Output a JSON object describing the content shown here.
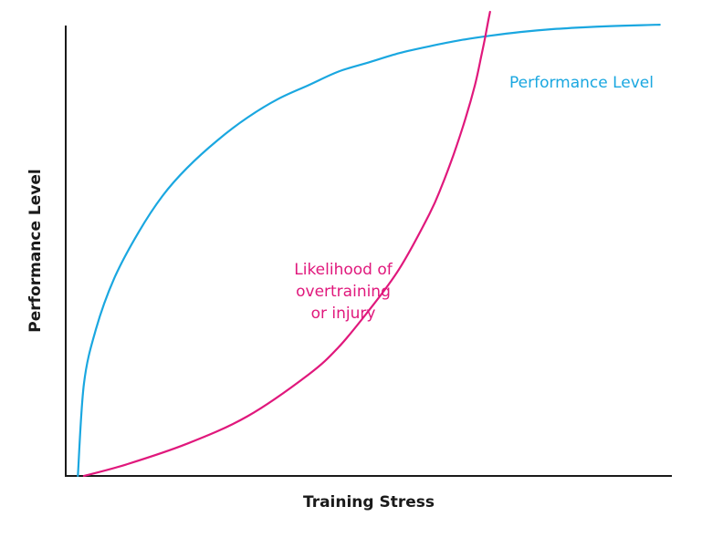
{
  "chart_data": {
    "type": "line",
    "title": "",
    "xlabel": "Training Stress",
    "ylabel": "Performance Level",
    "xlim": [
      0,
      100
    ],
    "ylim": [
      0,
      100
    ],
    "grid": false,
    "ticks": false,
    "series": [
      {
        "name": "Performance Level",
        "label_lines": [
          "Performance Level"
        ],
        "color": "#1aa7e0",
        "x": [
          2,
          3,
          5,
          8,
          12,
          16,
          20,
          25,
          30,
          35,
          40,
          45,
          50,
          55,
          60,
          65,
          70,
          75,
          80,
          85,
          90,
          95,
          98
        ],
        "y": [
          0,
          20,
          32,
          43,
          53,
          61,
          67,
          73,
          78,
          82,
          85,
          88,
          90,
          92,
          93.5,
          94.8,
          95.8,
          96.6,
          97.2,
          97.6,
          97.9,
          98.1,
          98.2
        ]
      },
      {
        "name": "Likelihood of overtraining or injury",
        "label_lines": [
          "Likelihood of",
          "overtraining",
          "or injury"
        ],
        "color": "#e0187c",
        "x": [
          3,
          10,
          20,
          30,
          40,
          45,
          50,
          55,
          60,
          62,
          64,
          66,
          67.5,
          68.5,
          69.2,
          69.7,
          70
        ],
        "y": [
          0,
          2.5,
          7,
          13,
          22,
          28,
          36,
          45,
          57,
          63,
          70,
          78,
          85,
          91,
          95.5,
          99,
          101
        ]
      }
    ]
  }
}
